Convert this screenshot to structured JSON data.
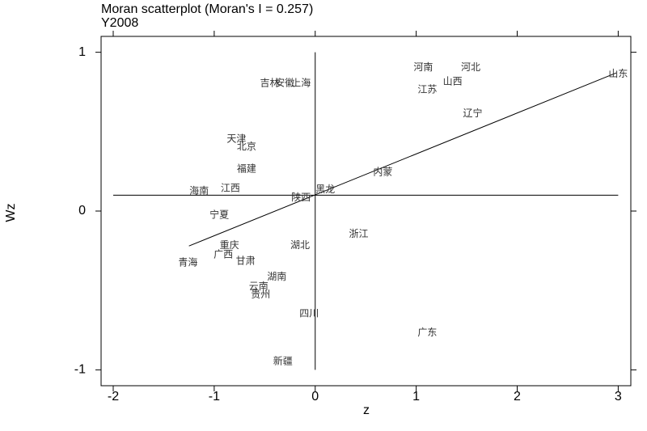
{
  "chart_data": {
    "type": "scatter",
    "title": "Moran scatterplot (Moran's I = 0.257)",
    "subtitle": "Y2008",
    "x_label": "z",
    "y_label": "Wz",
    "xlim": [
      -2.12,
      3.125
    ],
    "ylim": [
      -1.1,
      1.1
    ],
    "xticks": [
      -2,
      -1,
      0,
      1,
      2,
      3
    ],
    "yticks": [
      -1,
      0,
      1
    ],
    "point_labels": [
      "河南",
      "河北",
      "山西",
      "江苏",
      "山东",
      "辽宁",
      "吉林",
      "安徽",
      "上海",
      "天津",
      "北京",
      "福建",
      "内蒙",
      "海南",
      "江西",
      "黑龙",
      "陕西",
      "宁夏",
      "浙江",
      "湖北",
      "重庆",
      "广西",
      "青海",
      "甘肃",
      "湖南",
      "云南",
      "贵州",
      "四川",
      "广东",
      "新疆"
    ],
    "x": [
      1.07,
      1.54,
      1.36,
      1.11,
      3.0,
      1.56,
      -0.45,
      -0.3,
      -0.14,
      -0.78,
      -0.68,
      -0.68,
      0.67,
      -1.15,
      -0.84,
      0.1,
      -0.14,
      -0.95,
      0.43,
      -0.15,
      -0.85,
      -0.91,
      -1.26,
      -0.69,
      -0.38,
      -0.56,
      -0.54,
      -0.06,
      1.11,
      -0.32
    ],
    "y": [
      0.9,
      0.9,
      0.81,
      0.76,
      0.86,
      0.61,
      0.8,
      0.8,
      0.8,
      0.45,
      0.4,
      0.26,
      0.24,
      0.12,
      0.14,
      0.13,
      0.08,
      -0.03,
      -0.15,
      -0.22,
      -0.22,
      -0.28,
      -0.33,
      -0.32,
      -0.42,
      -0.48,
      -0.53,
      -0.65,
      -0.77,
      -0.95
    ],
    "fit_line": {
      "x": [
        -1.25,
        2.98
      ],
      "y": [
        -0.22,
        0.87
      ]
    },
    "h_line": {
      "y": 0.1,
      "x": [
        -2,
        3
      ]
    },
    "v_line": {
      "x": 0,
      "y": [
        -1,
        1
      ]
    }
  }
}
